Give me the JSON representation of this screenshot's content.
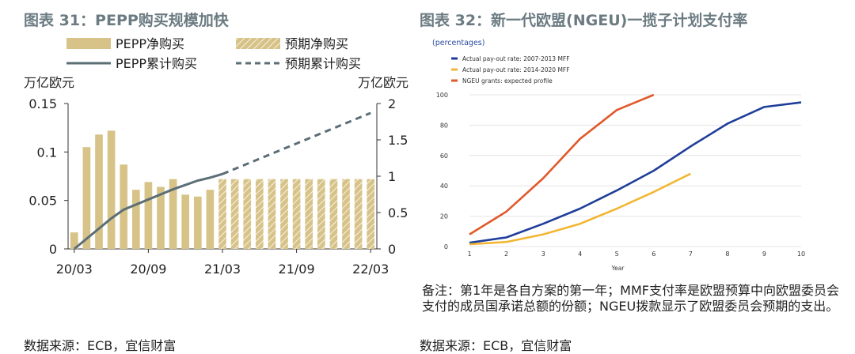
{
  "left": {
    "title": "图表 31：PEPP购买规模加快",
    "source": "数据来源：ECB，宜信财富"
  },
  "right": {
    "title": "图表 32：新一代欧盟(NGEU)一揽子计划支付率",
    "note": "备注：第1年是各自方案的第一年；MMF支付率是欧盟预算中向欧盟委员会支付的成员国承诺总额的份额；NGEU拨款显示了欧盟委员会预期的支出。",
    "source": "数据来源：ECB，宜信财富"
  },
  "chart_data": [
    {
      "type": "bar",
      "ylabel": "万亿欧元",
      "y2label": "万亿欧元",
      "ylim": [
        0,
        0.15
      ],
      "y2lim": [
        0,
        2
      ],
      "yticks": [
        "0",
        "0.05",
        "0.1",
        "0.15"
      ],
      "y2ticks": [
        "0",
        "0.5",
        "1",
        "1.5",
        "2"
      ],
      "xtick_labels": [
        "20/03",
        "20/09",
        "21/03",
        "21/09",
        "22/03"
      ],
      "legend": [
        "PEPP净购买",
        "预期净购买",
        "PEPP累计购买",
        "预期累计购买"
      ],
      "colors": {
        "bar": "#d7c388",
        "line": "#5b6e76"
      },
      "categories": [
        "2020-03",
        "2020-04",
        "2020-05",
        "2020-06",
        "2020-07",
        "2020-08",
        "2020-09",
        "2020-10",
        "2020-11",
        "2020-12",
        "2021-01",
        "2021-02",
        "2021-03",
        "2021-04",
        "2021-05",
        "2021-06",
        "2021-07",
        "2021-08",
        "2021-09",
        "2021-10",
        "2021-11",
        "2021-12",
        "2022-01",
        "2022-02",
        "2022-03"
      ],
      "series": [
        {
          "name": "PEPP净购买",
          "axis": "left",
          "kind": "bar",
          "values": [
            0.017,
            0.105,
            0.118,
            0.122,
            0.087,
            0.061,
            0.069,
            0.064,
            0.072,
            0.056,
            0.054,
            0.061,
            null,
            null,
            null,
            null,
            null,
            null,
            null,
            null,
            null,
            null,
            null,
            null,
            null
          ]
        },
        {
          "name": "预期净购买",
          "axis": "left",
          "kind": "bar-hatched",
          "values": [
            null,
            null,
            null,
            null,
            null,
            null,
            null,
            null,
            null,
            null,
            null,
            null,
            0.072,
            0.072,
            0.072,
            0.072,
            0.072,
            0.072,
            0.072,
            0.072,
            0.072,
            0.072,
            0.072,
            0.072,
            0.072
          ]
        },
        {
          "name": "PEPP累计购买",
          "axis": "right",
          "kind": "line",
          "values": [
            0.0,
            0.14,
            0.28,
            0.42,
            0.54,
            0.61,
            0.68,
            0.75,
            0.82,
            0.88,
            0.94,
            0.98,
            1.03,
            null,
            null,
            null,
            null,
            null,
            null,
            null,
            null,
            null,
            null,
            null,
            null
          ]
        },
        {
          "name": "预期累计购买",
          "axis": "right",
          "kind": "line-dashed",
          "values": [
            null,
            null,
            null,
            null,
            null,
            null,
            null,
            null,
            null,
            null,
            null,
            null,
            1.03,
            1.1,
            1.17,
            1.24,
            1.31,
            1.38,
            1.45,
            1.52,
            1.59,
            1.66,
            1.73,
            1.8,
            1.87
          ]
        }
      ]
    },
    {
      "type": "line",
      "unit_label": "(percentages)",
      "xlabel": "Year",
      "ylim": [
        0,
        100
      ],
      "xlim": [
        1,
        10
      ],
      "x": [
        1,
        2,
        3,
        4,
        5,
        6,
        7,
        8,
        9,
        10
      ],
      "yticks": [
        "0",
        "20",
        "40",
        "60",
        "80",
        "100"
      ],
      "legend_position": "top-left",
      "series": [
        {
          "name": "Actual pay-out rate: 2007-2013 MFF",
          "color": "#1f3e99",
          "values": [
            2.5,
            6,
            15,
            25,
            37,
            50,
            66,
            81,
            92,
            95
          ]
        },
        {
          "name": "Actual pay-out rate: 2014-2020 MFF",
          "color": "#f2b632",
          "values": [
            1.5,
            3,
            8,
            15,
            25,
            36,
            48,
            null,
            null,
            null
          ]
        },
        {
          "name": "NGEU grants: expected profile",
          "color": "#e05a2b",
          "values": [
            8,
            23,
            45,
            71,
            90,
            100,
            null,
            null,
            null,
            null
          ]
        }
      ]
    }
  ]
}
